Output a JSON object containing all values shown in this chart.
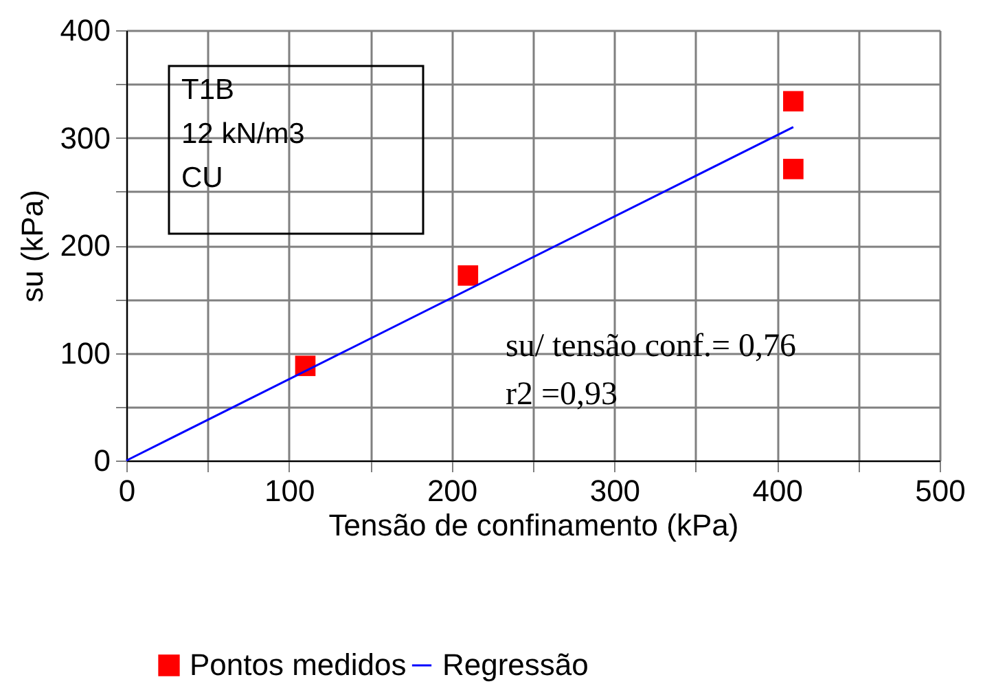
{
  "chart_data": {
    "type": "scatter",
    "xlabel": "Tensão de confinamento (kPa)",
    "ylabel": "su (kPa)",
    "series": [
      {
        "name": "Pontos medidos",
        "color": "#ff0000",
        "marker": "square",
        "x": [
          110,
          210,
          410,
          410
        ],
        "values": [
          88,
          172,
          334,
          271
        ]
      },
      {
        "name": "Regressão",
        "type": "line",
        "color": "#0000ff",
        "marker": "none",
        "line_style": "solid",
        "x": [
          0,
          410
        ],
        "values": [
          0,
          310
        ]
      }
    ],
    "xlim": [
      0,
      500
    ],
    "ylim": [
      0,
      400
    ],
    "xticks": [
      0,
      {
        "value": 50,
        "label": null
      },
      100,
      {
        "value": 150,
        "label": null
      },
      200,
      {
        "value": 250,
        "label": null
      },
      300,
      {
        "value": 350,
        "label": null
      },
      400,
      {
        "value": 450,
        "label": null
      },
      500
    ],
    "yticks": [
      0,
      {
        "value": 50,
        "label": null
      },
      100,
      {
        "value": 150,
        "label": null
      },
      200,
      {
        "value": 250,
        "label": null
      },
      300,
      {
        "value": 350,
        "label": null
      },
      400
    ],
    "grid": true,
    "legend": "bottom",
    "annotations": [
      "T1B",
      "12 kN/m3",
      "CU",
      "su/ tensão conf.= 0,76",
      "r2 =0,93"
    ]
  }
}
